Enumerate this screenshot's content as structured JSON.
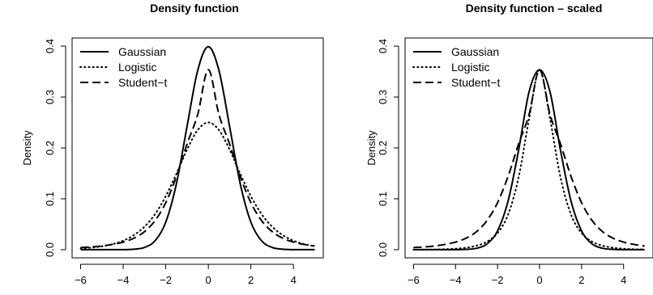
{
  "chart_data": [
    {
      "type": "line",
      "title": "Density function",
      "xlabel": "",
      "ylabel": "Density",
      "xlim": [
        -6.4,
        5.4
      ],
      "ylim": [
        -0.016,
        0.416
      ],
      "xticks": [
        -6,
        -4,
        -2,
        0,
        2,
        4
      ],
      "yticks": [
        0.0,
        0.1,
        0.2,
        0.3,
        0.4
      ],
      "xtick_labels": [
        "−6",
        "−4",
        "−2",
        "0",
        "2",
        "4"
      ],
      "ytick_labels": [
        "0.0",
        "0.1",
        "0.2",
        "0.3",
        "0.4"
      ],
      "legend_position": "top-left",
      "x": [
        -6,
        -5.5,
        -5,
        -4.5,
        -4,
        -3.5,
        -3,
        -2.5,
        -2,
        -1.5,
        -1,
        -0.5,
        0,
        0.5,
        1,
        1.5,
        2,
        2.5,
        3,
        3.5,
        4,
        4.5,
        5
      ],
      "series": [
        {
          "name": "Gaussian",
          "line": "solid",
          "values": [
            0.0,
            0.0,
            0.0,
            0.0,
            0.0001,
            0.0009,
            0.0044,
            0.0175,
            0.054,
            0.1295,
            0.242,
            0.3521,
            0.399,
            0.3521,
            0.242,
            0.1295,
            0.054,
            0.0175,
            0.0044,
            0.0009,
            0.0001,
            0.0,
            0.0
          ]
        },
        {
          "name": "Logistic",
          "line": "dotted",
          "values": [
            0.0025,
            0.0041,
            0.0066,
            0.0109,
            0.0177,
            0.0285,
            0.0452,
            0.07,
            0.105,
            0.1491,
            0.1966,
            0.235,
            0.25,
            0.235,
            0.1966,
            0.1491,
            0.105,
            0.07,
            0.0452,
            0.0285,
            0.0177,
            0.0109,
            0.0066
          ]
        },
        {
          "name": "Student−t",
          "line": "dashed",
          "values": [
            0.0042,
            0.0054,
            0.0073,
            0.0103,
            0.0149,
            0.0225,
            0.0354,
            0.0573,
            0.0923,
            0.1438,
            0.2075,
            0.2655,
            0.3536,
            0.2655,
            0.2075,
            0.1438,
            0.0923,
            0.0573,
            0.0354,
            0.0225,
            0.0149,
            0.0103,
            0.0073
          ]
        }
      ]
    },
    {
      "type": "line",
      "title": "Density function – scaled",
      "xlabel": "",
      "ylabel": "Density",
      "xlim": [
        -6.4,
        5.4
      ],
      "ylim": [
        -0.016,
        0.416
      ],
      "xticks": [
        -6,
        -4,
        -2,
        0,
        2,
        4
      ],
      "yticks": [
        0.0,
        0.1,
        0.2,
        0.3,
        0.4
      ],
      "xtick_labels": [
        "−6",
        "−4",
        "−2",
        "0",
        "2",
        "4"
      ],
      "ytick_labels": [
        "0.0",
        "0.1",
        "0.2",
        "0.3",
        "0.4"
      ],
      "legend_position": "top-left",
      "x": [
        -6,
        -5.5,
        -5,
        -4.5,
        -4,
        -3.5,
        -3,
        -2.5,
        -2,
        -1.5,
        -1,
        -0.5,
        0,
        0.5,
        1,
        1.5,
        2,
        2.5,
        3,
        3.5,
        4,
        4.5,
        5
      ],
      "series": [
        {
          "name": "Gaussian",
          "line": "solid",
          "values": [
            0.0,
            0.0,
            0.0,
            0.0,
            0.0001,
            0.0006,
            0.0028,
            0.0114,
            0.037,
            0.0952,
            0.1948,
            0.3098,
            0.3536,
            0.3098,
            0.1948,
            0.0952,
            0.037,
            0.0114,
            0.0028,
            0.0006,
            0.0001,
            0.0,
            0.0
          ]
        },
        {
          "name": "Logistic",
          "line": "dotted",
          "values": [
            0.0001,
            0.0002,
            0.0005,
            0.0009,
            0.0019,
            0.0038,
            0.0078,
            0.0158,
            0.0327,
            0.0688,
            0.1416,
            0.2568,
            0.3536,
            0.2568,
            0.1416,
            0.0688,
            0.0327,
            0.0158,
            0.0078,
            0.0038,
            0.0019,
            0.0009,
            0.0005
          ]
        },
        {
          "name": "Student−t",
          "line": "dashed",
          "values": [
            0.0042,
            0.0054,
            0.0073,
            0.0103,
            0.0149,
            0.0225,
            0.0354,
            0.0573,
            0.0923,
            0.1438,
            0.2075,
            0.2655,
            0.3536,
            0.2655,
            0.2075,
            0.1438,
            0.0923,
            0.0573,
            0.0354,
            0.0225,
            0.0149,
            0.0103,
            0.0073
          ]
        }
      ]
    }
  ]
}
